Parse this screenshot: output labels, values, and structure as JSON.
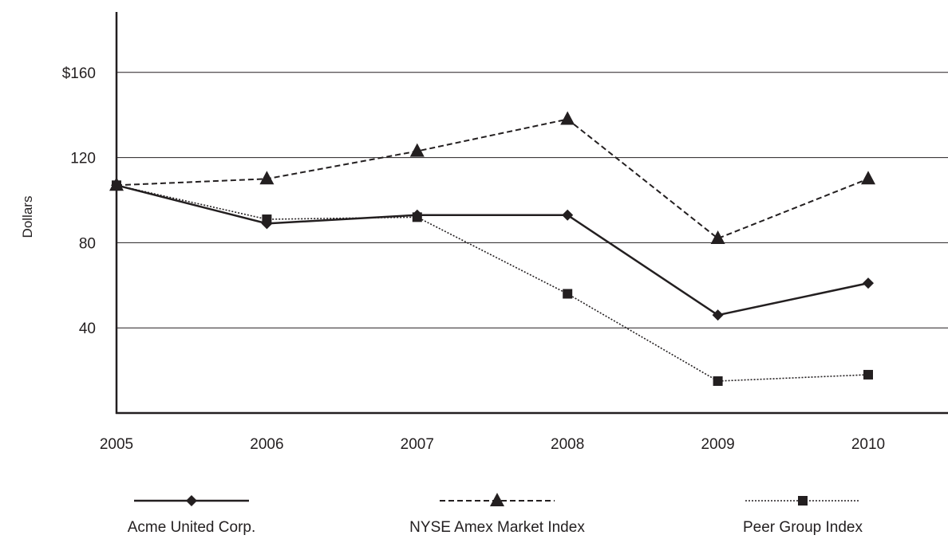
{
  "chart_data": {
    "type": "line",
    "title": "",
    "xlabel": "",
    "ylabel": "Dollars",
    "categories": [
      "2005",
      "2006",
      "2007",
      "2008",
      "2009",
      "2010"
    ],
    "ylim": [
      0,
      186
    ],
    "y_ticks": [
      {
        "value": 40,
        "label": "40"
      },
      {
        "value": 80,
        "label": "80"
      },
      {
        "value": 120,
        "label": "120"
      },
      {
        "value": 160,
        "label": "$160"
      }
    ],
    "grid": "horizontal",
    "legend_position": "bottom",
    "series": [
      {
        "name": "Acme United Corp.",
        "values": [
          107,
          89,
          93,
          93,
          46,
          61
        ],
        "line_style": "solid",
        "marker": "diamond",
        "color": "#231f20"
      },
      {
        "name": "NYSE Amex Market Index",
        "values": [
          107,
          110,
          123,
          138,
          82,
          110
        ],
        "line_style": "dashed",
        "marker": "triangle",
        "color": "#231f20"
      },
      {
        "name": "Peer Group Index",
        "values": [
          107,
          91,
          92,
          56,
          15,
          18
        ],
        "line_style": "dotted",
        "marker": "square",
        "color": "#231f20"
      }
    ]
  }
}
